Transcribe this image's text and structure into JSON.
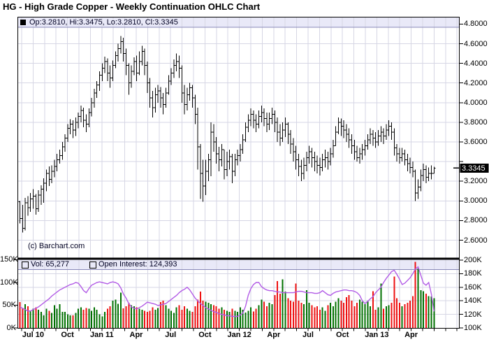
{
  "title": "HG - High Grade Copper - Weekly Continuation OHLC Chart",
  "quote_bar": {
    "text": "Op:3.2810, Hi:3.3475, Lo:3.2810, Cl:3.3345"
  },
  "watermark": "(c) Barchart.com",
  "badge": {
    "text": "3.3345"
  },
  "legend": {
    "vol_label": "Vol: 65,277",
    "oi_label": "Open Interest: 124,393"
  },
  "colors": {
    "up": "#007000",
    "down": "#ee1111",
    "oi_line": "#b25ce6",
    "bar": "#000000",
    "grid": "#d6d6e4",
    "strip": "#e9e9f8",
    "strip_edge": "#8888b8",
    "frame": "#000000",
    "badge_bg": "#000000",
    "badge_fg": "#ffffff",
    "vol_swatch": "#006600",
    "oi_swatch": "#9900cc"
  },
  "chart_data": {
    "type": "ohlc",
    "title": "HG - High Grade Copper - Weekly Continuation OHLC Chart",
    "legend_position": "top-strips",
    "grid": true,
    "last_bar": {
      "open": 3.281,
      "high": 3.3475,
      "low": 3.281,
      "close": 3.3345
    },
    "current_volume": 65277,
    "current_open_interest": 124393,
    "price_axis": {
      "side": "right",
      "ylim": [
        2.45,
        4.88
      ],
      "labels": [
        {
          "text": "4.8000",
          "value": 4.8
        },
        {
          "text": "4.6000",
          "value": 4.6
        },
        {
          "text": "4.4000",
          "value": 4.4
        },
        {
          "text": "4.2000",
          "value": 4.2
        },
        {
          "text": "4.0000",
          "value": 4.0
        },
        {
          "text": "3.8000",
          "value": 3.8
        },
        {
          "text": "3.6000",
          "value": 3.6
        },
        {
          "text": "3.2000",
          "value": 3.2
        },
        {
          "text": "3.0000",
          "value": 3.0
        },
        {
          "text": "2.8000",
          "value": 2.8
        },
        {
          "text": "2.6000",
          "value": 2.6
        }
      ],
      "tick_values": [
        4.8,
        4.6,
        4.4,
        4.2,
        4.0,
        3.8,
        3.6,
        3.4,
        3.2,
        3.0,
        2.8,
        2.6
      ]
    },
    "volume_axis": {
      "side": "left",
      "ylim": [
        0,
        150
      ],
      "labels": [
        {
          "text": "150K",
          "value": 150
        },
        {
          "text": "100K",
          "value": 100
        },
        {
          "text": "50K",
          "value": 50
        },
        {
          "text": "0K",
          "value": 0
        }
      ]
    },
    "oi_axis": {
      "side": "right",
      "ylim": [
        100,
        200
      ],
      "labels": [
        {
          "text": "200K",
          "value": 200
        },
        {
          "text": "180K",
          "value": 180
        },
        {
          "text": "160K",
          "value": 160
        },
        {
          "text": "140K",
          "value": 140
        },
        {
          "text": "120K",
          "value": 120
        },
        {
          "text": "100K",
          "value": 100
        }
      ],
      "gridline_values": [
        120,
        140,
        160,
        180
      ]
    },
    "x_axis": {
      "months_span": 39,
      "weeks": 157,
      "labels": [
        {
          "text": "Jul 10",
          "month": 1
        },
        {
          "text": "Oct",
          "month": 4
        },
        {
          "text": "Jan 11",
          "month": 7
        },
        {
          "text": "Apr",
          "month": 10
        },
        {
          "text": "Jul",
          "month": 13
        },
        {
          "text": "Oct",
          "month": 16
        },
        {
          "text": "Jan 12",
          "month": 19
        },
        {
          "text": "Apr",
          "month": 22
        },
        {
          "text": "Jul",
          "month": 25
        },
        {
          "text": "Oct",
          "month": 28
        },
        {
          "text": "Jan 13",
          "month": 31
        },
        {
          "text": "Apr",
          "month": 34
        }
      ]
    },
    "ohlc": [
      [
        2.99,
        3.0,
        2.77,
        2.82
      ],
      [
        2.82,
        2.96,
        2.68,
        2.72
      ],
      [
        2.72,
        3.03,
        2.7,
        2.98
      ],
      [
        2.98,
        3.05,
        2.85,
        2.93
      ],
      [
        2.93,
        3.08,
        2.89,
        3.02
      ],
      [
        3.02,
        3.12,
        2.92,
        3.05
      ],
      [
        3.05,
        3.07,
        2.86,
        2.92
      ],
      [
        2.92,
        3.11,
        2.89,
        3.06
      ],
      [
        3.06,
        3.16,
        2.96,
        3.12
      ],
      [
        3.12,
        3.23,
        2.98,
        3.18
      ],
      [
        3.18,
        3.32,
        3.1,
        3.28
      ],
      [
        3.28,
        3.35,
        3.15,
        3.22
      ],
      [
        3.22,
        3.36,
        3.18,
        3.3
      ],
      [
        3.3,
        3.42,
        3.24,
        3.35
      ],
      [
        3.35,
        3.48,
        3.3,
        3.42
      ],
      [
        3.42,
        3.52,
        3.38,
        3.46
      ],
      [
        3.46,
        3.6,
        3.42,
        3.55
      ],
      [
        3.55,
        3.68,
        3.5,
        3.64
      ],
      [
        3.64,
        3.78,
        3.6,
        3.74
      ],
      [
        3.74,
        3.83,
        3.68,
        3.78
      ],
      [
        3.78,
        3.82,
        3.64,
        3.72
      ],
      [
        3.72,
        3.85,
        3.66,
        3.8
      ],
      [
        3.8,
        3.9,
        3.74,
        3.86
      ],
      [
        3.86,
        3.97,
        3.8,
        3.92
      ],
      [
        3.92,
        3.95,
        3.75,
        3.82
      ],
      [
        3.82,
        3.88,
        3.7,
        3.78
      ],
      [
        3.78,
        3.94,
        3.75,
        3.9
      ],
      [
        3.9,
        4.05,
        3.86,
        4.0
      ],
      [
        4.0,
        4.14,
        3.95,
        4.1
      ],
      [
        4.1,
        4.22,
        4.05,
        4.18
      ],
      [
        4.18,
        4.32,
        4.12,
        4.28
      ],
      [
        4.28,
        4.4,
        4.22,
        4.35
      ],
      [
        4.35,
        4.47,
        4.3,
        4.42
      ],
      [
        4.42,
        4.45,
        4.22,
        4.3
      ],
      [
        4.3,
        4.38,
        4.15,
        4.25
      ],
      [
        4.25,
        4.43,
        4.22,
        4.38
      ],
      [
        4.38,
        4.52,
        4.35,
        4.48
      ],
      [
        4.48,
        4.6,
        4.42,
        4.55
      ],
      [
        4.55,
        4.68,
        4.5,
        4.62
      ],
      [
        4.62,
        4.66,
        4.42,
        4.5
      ],
      [
        4.5,
        4.55,
        4.28,
        4.38
      ],
      [
        4.38,
        4.4,
        4.08,
        4.2
      ],
      [
        4.2,
        4.38,
        4.15,
        4.32
      ],
      [
        4.32,
        4.46,
        4.28,
        4.42
      ],
      [
        4.42,
        4.48,
        4.22,
        4.3
      ],
      [
        4.3,
        4.52,
        4.28,
        4.42
      ],
      [
        4.42,
        4.58,
        4.38,
        4.52
      ],
      [
        4.52,
        4.55,
        4.28,
        4.38
      ],
      [
        4.38,
        4.42,
        4.1,
        4.2
      ],
      [
        4.2,
        4.25,
        3.95,
        4.05
      ],
      [
        4.05,
        4.12,
        3.85,
        3.95
      ],
      [
        3.95,
        4.15,
        3.9,
        4.08
      ],
      [
        4.08,
        4.18,
        4.0,
        4.12
      ],
      [
        4.12,
        4.16,
        3.95,
        4.05
      ],
      [
        4.05,
        4.1,
        3.88,
        3.98
      ],
      [
        3.98,
        4.15,
        3.95,
        4.1
      ],
      [
        4.1,
        4.28,
        4.08,
        4.22
      ],
      [
        4.22,
        4.35,
        4.18,
        4.3
      ],
      [
        4.3,
        4.44,
        4.25,
        4.38
      ],
      [
        4.38,
        4.5,
        4.32,
        4.42
      ],
      [
        4.42,
        4.48,
        4.25,
        4.35
      ],
      [
        4.35,
        4.38,
        4.0,
        4.1
      ],
      [
        4.1,
        4.18,
        3.88,
        3.98
      ],
      [
        3.98,
        4.15,
        3.92,
        4.08
      ],
      [
        4.08,
        4.2,
        4.02,
        4.15
      ],
      [
        4.15,
        4.18,
        3.95,
        4.05
      ],
      [
        4.05,
        4.08,
        3.78,
        3.88
      ],
      [
        3.88,
        3.95,
        3.32,
        3.55
      ],
      [
        3.55,
        3.58,
        3.02,
        3.28
      ],
      [
        3.28,
        3.42,
        2.99,
        3.15
      ],
      [
        3.15,
        3.42,
        3.06,
        3.3
      ],
      [
        3.3,
        3.48,
        3.2,
        3.42
      ],
      [
        3.42,
        3.8,
        3.25,
        3.7
      ],
      [
        3.7,
        3.78,
        3.5,
        3.6
      ],
      [
        3.6,
        3.65,
        3.38,
        3.48
      ],
      [
        3.48,
        3.55,
        3.3,
        3.42
      ],
      [
        3.42,
        3.58,
        3.35,
        3.52
      ],
      [
        3.52,
        3.52,
        3.22,
        3.32
      ],
      [
        3.32,
        3.5,
        3.25,
        3.4
      ],
      [
        3.4,
        3.52,
        3.32,
        3.45
      ],
      [
        3.45,
        3.48,
        3.18,
        3.3
      ],
      [
        3.3,
        3.48,
        3.25,
        3.42
      ],
      [
        3.42,
        3.52,
        3.36,
        3.46
      ],
      [
        3.46,
        3.58,
        3.4,
        3.52
      ],
      [
        3.52,
        3.68,
        3.48,
        3.62
      ],
      [
        3.62,
        3.8,
        3.6,
        3.75
      ],
      [
        3.75,
        3.88,
        3.7,
        3.82
      ],
      [
        3.82,
        3.94,
        3.76,
        3.88
      ],
      [
        3.88,
        3.92,
        3.74,
        3.82
      ],
      [
        3.82,
        3.88,
        3.7,
        3.78
      ],
      [
        3.78,
        3.92,
        3.74,
        3.86
      ],
      [
        3.86,
        3.97,
        3.8,
        3.9
      ],
      [
        3.9,
        3.94,
        3.76,
        3.84
      ],
      [
        3.84,
        3.9,
        3.7,
        3.78
      ],
      [
        3.78,
        3.9,
        3.72,
        3.84
      ],
      [
        3.84,
        3.95,
        3.78,
        3.88
      ],
      [
        3.88,
        3.92,
        3.7,
        3.8
      ],
      [
        3.8,
        3.85,
        3.6,
        3.7
      ],
      [
        3.7,
        3.78,
        3.56,
        3.64
      ],
      [
        3.64,
        3.8,
        3.6,
        3.72
      ],
      [
        3.72,
        3.85,
        3.65,
        3.78
      ],
      [
        3.78,
        3.8,
        3.58,
        3.68
      ],
      [
        3.68,
        3.72,
        3.48,
        3.58
      ],
      [
        3.58,
        3.64,
        3.4,
        3.5
      ],
      [
        3.5,
        3.56,
        3.32,
        3.42
      ],
      [
        3.42,
        3.48,
        3.25,
        3.35
      ],
      [
        3.35,
        3.42,
        3.2,
        3.28
      ],
      [
        3.28,
        3.44,
        3.22,
        3.36
      ],
      [
        3.36,
        3.5,
        3.3,
        3.44
      ],
      [
        3.44,
        3.56,
        3.38,
        3.5
      ],
      [
        3.5,
        3.54,
        3.34,
        3.44
      ],
      [
        3.44,
        3.5,
        3.3,
        3.4
      ],
      [
        3.4,
        3.46,
        3.28,
        3.36
      ],
      [
        3.36,
        3.44,
        3.26,
        3.34
      ],
      [
        3.34,
        3.48,
        3.3,
        3.42
      ],
      [
        3.42,
        3.52,
        3.34,
        3.44
      ],
      [
        3.44,
        3.5,
        3.32,
        3.4
      ],
      [
        3.4,
        3.54,
        3.36,
        3.48
      ],
      [
        3.48,
        3.62,
        3.44,
        3.56
      ],
      [
        3.56,
        3.76,
        3.56,
        3.7
      ],
      [
        3.7,
        3.85,
        3.68,
        3.8
      ],
      [
        3.8,
        3.84,
        3.66,
        3.76
      ],
      [
        3.76,
        3.82,
        3.64,
        3.72
      ],
      [
        3.72,
        3.78,
        3.6,
        3.68
      ],
      [
        3.68,
        3.74,
        3.54,
        3.62
      ],
      [
        3.62,
        3.68,
        3.48,
        3.56
      ],
      [
        3.56,
        3.62,
        3.42,
        3.5
      ],
      [
        3.5,
        3.56,
        3.4,
        3.44
      ],
      [
        3.44,
        3.54,
        3.38,
        3.48
      ],
      [
        3.48,
        3.58,
        3.42,
        3.52
      ],
      [
        3.52,
        3.62,
        3.46,
        3.56
      ],
      [
        3.56,
        3.68,
        3.52,
        3.62
      ],
      [
        3.62,
        3.74,
        3.58,
        3.68
      ],
      [
        3.68,
        3.72,
        3.56,
        3.64
      ],
      [
        3.64,
        3.7,
        3.54,
        3.6
      ],
      [
        3.6,
        3.72,
        3.56,
        3.66
      ],
      [
        3.66,
        3.76,
        3.6,
        3.7
      ],
      [
        3.7,
        3.74,
        3.58,
        3.66
      ],
      [
        3.66,
        3.78,
        3.62,
        3.72
      ],
      [
        3.72,
        3.82,
        3.66,
        3.76
      ],
      [
        3.76,
        3.8,
        3.62,
        3.7
      ],
      [
        3.7,
        3.74,
        3.46,
        3.54
      ],
      [
        3.54,
        3.58,
        3.4,
        3.48
      ],
      [
        3.48,
        3.54,
        3.38,
        3.44
      ],
      [
        3.44,
        3.54,
        3.4,
        3.48
      ],
      [
        3.48,
        3.52,
        3.36,
        3.42
      ],
      [
        3.42,
        3.48,
        3.3,
        3.38
      ],
      [
        3.38,
        3.44,
        3.28,
        3.34
      ],
      [
        3.34,
        3.4,
        3.24,
        3.3
      ],
      [
        3.3,
        3.32,
        3.0,
        3.08
      ],
      [
        3.08,
        3.22,
        3.02,
        3.14
      ],
      [
        3.14,
        3.32,
        3.1,
        3.26
      ],
      [
        3.26,
        3.38,
        3.2,
        3.32
      ],
      [
        3.32,
        3.36,
        3.18,
        3.24
      ],
      [
        3.24,
        3.34,
        3.2,
        3.28
      ],
      [
        3.28,
        3.36,
        3.22,
        3.28
      ],
      [
        3.281,
        3.3475,
        3.281,
        3.3345
      ]
    ],
    "volume": [
      57,
      44,
      52,
      48,
      38,
      42,
      45,
      40,
      35,
      28,
      42,
      38,
      33,
      50,
      42,
      52,
      35,
      35,
      30,
      28,
      28,
      33,
      42,
      45,
      40,
      44,
      42,
      38,
      45,
      40,
      30,
      25,
      35,
      42,
      48,
      60,
      62,
      53,
      78,
      43,
      48,
      55,
      50,
      48,
      45,
      42,
      40,
      38,
      35,
      38,
      45,
      40,
      44,
      57,
      60,
      50,
      42,
      38,
      33,
      45,
      50,
      40,
      48,
      42,
      38,
      35,
      48,
      62,
      80,
      60,
      58,
      55,
      52,
      50,
      48,
      42,
      45,
      40,
      38,
      35,
      42,
      38,
      35,
      45,
      40,
      34,
      38,
      45,
      36,
      42,
      50,
      62,
      58,
      48,
      55,
      52,
      72,
      103,
      75,
      107,
      80,
      65,
      60,
      58,
      98,
      60,
      55,
      52,
      83,
      55,
      50,
      45,
      48,
      40,
      45,
      38,
      50,
      55,
      48,
      58,
      65,
      60,
      55,
      68,
      72,
      60,
      48,
      55,
      62,
      58,
      52,
      60,
      48,
      81,
      40,
      45,
      98,
      42,
      48,
      50,
      55,
      113,
      65,
      55,
      48,
      52,
      55,
      60,
      70,
      145,
      131,
      83,
      81,
      75,
      70,
      69,
      65
    ],
    "open_interest": [
      131,
      129,
      127,
      125,
      125,
      127,
      129,
      131,
      134,
      137,
      140,
      143,
      147,
      150,
      153,
      156,
      158,
      160,
      162,
      164,
      165,
      167,
      166,
      161,
      155,
      152,
      158,
      163,
      165,
      167,
      168,
      167,
      166,
      165,
      167,
      168,
      167,
      165,
      159,
      150,
      144,
      136,
      131,
      129,
      128,
      130,
      132,
      135,
      138,
      137,
      136,
      135,
      133,
      134,
      135,
      136,
      139,
      142,
      145,
      148,
      152,
      155,
      157,
      160,
      156,
      150,
      144,
      140,
      136,
      133,
      130,
      128,
      126,
      124,
      123,
      121,
      120,
      119,
      118,
      118,
      117,
      117,
      117,
      119,
      122,
      132,
      148,
      158,
      164,
      167,
      167,
      161,
      158,
      156,
      155,
      155,
      154,
      153,
      153,
      152,
      152,
      152,
      152,
      152,
      153,
      154,
      154,
      153,
      152,
      152,
      152,
      151,
      151,
      152,
      155,
      152,
      149,
      148,
      151,
      153,
      154,
      155,
      156,
      156,
      155,
      155,
      154,
      152,
      148,
      140,
      136,
      139,
      143,
      146,
      152,
      156,
      160,
      167,
      173,
      178,
      183,
      185,
      179,
      172,
      164,
      166,
      170,
      174,
      180,
      187,
      190,
      178,
      166,
      163,
      167,
      150,
      124.4
    ]
  }
}
